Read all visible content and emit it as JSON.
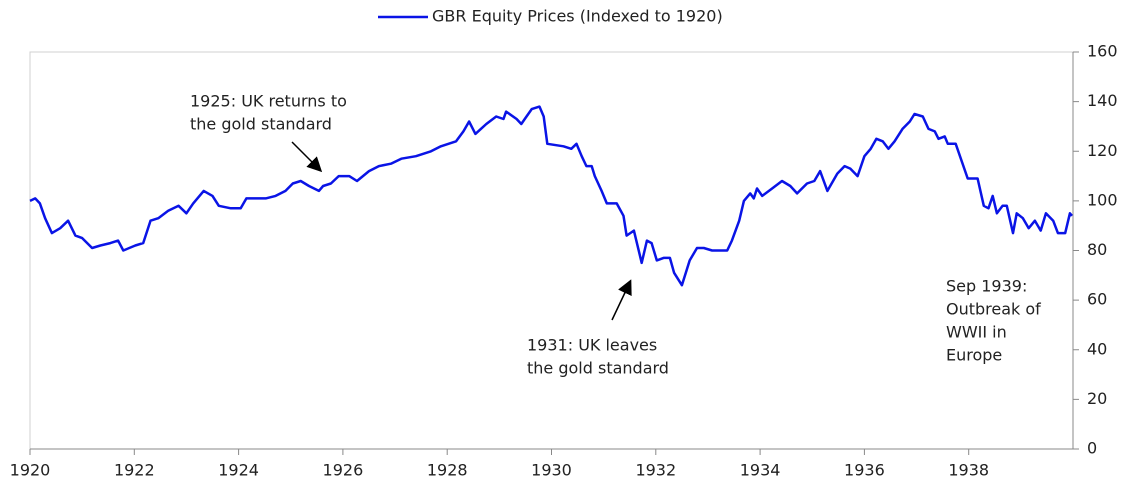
{
  "chart_data": {
    "type": "line",
    "series": [
      {
        "name": "GBR Equity Prices (Indexed to 1920)",
        "color": "#0a14e6",
        "x": [
          1920.0,
          1920.1,
          1920.19,
          1920.29,
          1920.42,
          1920.58,
          1920.73,
          1920.87,
          1921.0,
          1921.19,
          1921.35,
          1921.54,
          1921.69,
          1921.79,
          1922.02,
          1922.17,
          1922.31,
          1922.46,
          1922.65,
          1922.85,
          1923.0,
          1923.13,
          1923.33,
          1923.5,
          1923.62,
          1923.85,
          1924.04,
          1924.15,
          1924.52,
          1924.71,
          1924.9,
          1925.04,
          1925.19,
          1925.35,
          1925.54,
          1925.62,
          1925.77,
          1925.92,
          1926.12,
          1926.27,
          1926.5,
          1926.69,
          1926.92,
          1927.12,
          1927.4,
          1927.69,
          1927.88,
          1928.17,
          1928.31,
          1928.42,
          1928.54,
          1928.75,
          1928.94,
          1929.08,
          1929.13,
          1929.33,
          1929.42,
          1929.52,
          1929.62,
          1929.77,
          1929.85,
          1929.92,
          1930.23,
          1930.38,
          1930.48,
          1930.58,
          1930.67,
          1930.77,
          1930.83,
          1930.96,
          1931.06,
          1931.25,
          1931.38,
          1931.44,
          1931.58,
          1931.73,
          1931.83,
          1931.92,
          1932.02,
          1932.15,
          1932.27,
          1932.35,
          1932.5,
          1932.65,
          1932.79,
          1932.92,
          1933.08,
          1933.37,
          1933.46,
          1933.6,
          1933.69,
          1933.81,
          1933.88,
          1933.94,
          1934.04,
          1934.23,
          1934.42,
          1934.58,
          1934.71,
          1934.9,
          1935.04,
          1935.15,
          1935.29,
          1935.48,
          1935.62,
          1935.73,
          1935.87,
          1936.0,
          1936.12,
          1936.23,
          1936.35,
          1936.46,
          1936.58,
          1936.73,
          1936.87,
          1936.96,
          1937.12,
          1937.23,
          1937.35,
          1937.42,
          1937.54,
          1937.6,
          1937.75,
          1937.98,
          1938.17,
          1938.29,
          1938.38,
          1938.46,
          1938.54,
          1938.65,
          1938.73,
          1938.85,
          1938.92,
          1939.04,
          1939.15,
          1939.27,
          1939.38,
          1939.48,
          1939.62,
          1939.71,
          1939.85,
          1939.94,
          1939.98
        ],
        "values": [
          100,
          101,
          99,
          93,
          87,
          89,
          92,
          86,
          85,
          81,
          82,
          83,
          84,
          80,
          82,
          83,
          92,
          93,
          96,
          98,
          95,
          99,
          104,
          102,
          98,
          97,
          97,
          101,
          101,
          102,
          104,
          107,
          108,
          106,
          104,
          106,
          107,
          110,
          110,
          108,
          112,
          114,
          115,
          117,
          118,
          120,
          122,
          124,
          128,
          132,
          127,
          131,
          134,
          133,
          136,
          133,
          131,
          134,
          137,
          138,
          134,
          123,
          122,
          121,
          123,
          118,
          114,
          114,
          110,
          104,
          99,
          99,
          94,
          86,
          88,
          75,
          84,
          83,
          76,
          77,
          77,
          71,
          66,
          76,
          81,
          81,
          80,
          80,
          84,
          92,
          100,
          103,
          101,
          105,
          102,
          105,
          108,
          106,
          103,
          107,
          108,
          112,
          104,
          111,
          114,
          113,
          110,
          118,
          121,
          125,
          124,
          121,
          124,
          129,
          132,
          135,
          134,
          129,
          128,
          125,
          126,
          123,
          123,
          109,
          109,
          98,
          97,
          102,
          95,
          98,
          98,
          87,
          95,
          93,
          89,
          92,
          88,
          95,
          92,
          87,
          87,
          95,
          94
        ]
      }
    ],
    "xlim": [
      1920,
      1940
    ],
    "xticks": [
      1920,
      1922,
      1924,
      1926,
      1928,
      1930,
      1932,
      1934,
      1936,
      1938
    ],
    "ylim": [
      0,
      160
    ],
    "yticks": [
      0,
      20,
      40,
      60,
      80,
      100,
      120,
      140,
      160
    ],
    "y_axis_side": "right",
    "grid": false,
    "legend": "top",
    "annotations": [
      {
        "lines": [
          "1925: UK returns to",
          "the gold standard"
        ]
      },
      {
        "lines": [
          "1931: UK leaves",
          "the gold standard"
        ]
      },
      {
        "lines": [
          "Sep 1939:",
          "Outbreak of",
          "WWII in",
          "Europe"
        ]
      }
    ]
  }
}
